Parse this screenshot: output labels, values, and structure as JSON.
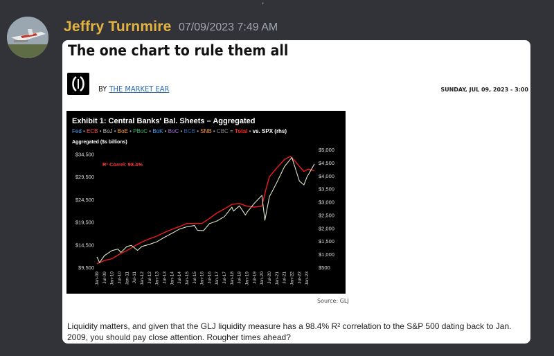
{
  "message": {
    "username": "Jeffry Turnmire",
    "timestamp": "07/09/2023 7:49 AM",
    "avatar": "airplane-avatar"
  },
  "embed": {
    "title": "The one chart to rule them all",
    "byline_prefix": "BY",
    "author": "THE MARKET EAR",
    "date": "SUNDAY, JUL 09, 2023 - 3:00",
    "source": "Source: GLJ",
    "text": "Liquidity matters, and given that the GLJ liquidity measure has a 98.4% R² correlation to the S&P 500 dating back to Jan. 2009, you should pay close attention. Rougher times ahead?"
  },
  "chart_data": {
    "type": "line",
    "title": "Exhibit 1: Central Banks' Bal. Sheets – Aggregated",
    "legend": [
      {
        "name": "Fed",
        "color": "#4da3ff"
      },
      {
        "name": "ECB",
        "color": "#ff4d4d"
      },
      {
        "name": "BoJ",
        "color": "#bbbbbb"
      },
      {
        "name": "BoE",
        "color": "#ffa033"
      },
      {
        "name": "PBoC",
        "color": "#3cb371"
      },
      {
        "name": "BoK",
        "color": "#3aa0ff"
      },
      {
        "name": "BoC",
        "color": "#a070d0"
      },
      {
        "name": "BCB",
        "color": "#2c5f9e"
      },
      {
        "name": "SNB",
        "color": "#ff9933"
      },
      {
        "name": "CBC",
        "color": "#888888"
      },
      {
        "name": "Total",
        "color": "#ff2020"
      },
      {
        "name": "vs. SPX (rhs)",
        "color": "#ffffff"
      }
    ],
    "legend_sep": "•",
    "legend_eq": "=",
    "ylabel": "Aggregated ($s billions)",
    "annotation": "R² Correl: 98.4%",
    "left_ticks": [
      "$34,500",
      "$29,500",
      "$24,500",
      "$19,500",
      "$14,500",
      "$9,500"
    ],
    "left_values": [
      34500,
      29500,
      24500,
      19500,
      14500,
      9500
    ],
    "ylim_left": [
      9500,
      35500
    ],
    "right_ticks": [
      "$5,000",
      "$4,500",
      "$4,000",
      "$3,500",
      "$3,000",
      "$2,500",
      "$2,000",
      "$1,500",
      "$1,000",
      "$500"
    ],
    "right_values": [
      5000,
      4500,
      4000,
      3500,
      3000,
      2500,
      2000,
      1500,
      1000,
      500
    ],
    "ylim_right": [
      500,
      5000
    ],
    "x_ticks": [
      "Jan-09",
      "Jul-09",
      "Jan-10",
      "Jul-10",
      "Jan-11",
      "Jul-11",
      "Jan-12",
      "Jul-12",
      "Jan-13",
      "Jul-13",
      "Jan-14",
      "Jul-14",
      "Jan-15",
      "Jul-15",
      "Jan-16",
      "Jul-16",
      "Jan-17",
      "Jul-17",
      "Jan-18",
      "Jul-18",
      "Jan-19",
      "Jul-19",
      "Jan-20",
      "Jul-20",
      "Jan-21",
      "Jul-21",
      "Jan-22",
      "Jul-22",
      "Jan-23"
    ],
    "series": [
      {
        "name": "Total",
        "color": "#ee1c1c",
        "axis": "left",
        "x": [
          2009.0,
          2009.5,
          2010.0,
          2010.5,
          2011.0,
          2011.5,
          2012.0,
          2012.5,
          2013.0,
          2013.5,
          2014.0,
          2014.5,
          2015.0,
          2015.5,
          2016.0,
          2016.5,
          2017.0,
          2017.5,
          2018.0,
          2018.5,
          2019.0,
          2019.5,
          2020.0,
          2020.25,
          2020.5,
          2021.0,
          2021.5,
          2021.9,
          2022.2,
          2022.5,
          2022.8,
          2023.1,
          2023.5
        ],
        "values": [
          10300,
          11000,
          11400,
          12400,
          13200,
          14200,
          15100,
          15800,
          16400,
          17200,
          17900,
          18500,
          19200,
          19200,
          19200,
          20300,
          21500,
          22400,
          23400,
          23600,
          23000,
          22800,
          23000,
          26500,
          29500,
          31500,
          33300,
          34000,
          33000,
          31800,
          30700,
          31200,
          30800
        ]
      },
      {
        "name": "vs. SPX (rhs)",
        "color": "#d8e8c8",
        "axis": "right",
        "x": [
          2009.0,
          2009.17,
          2009.5,
          2010.0,
          2010.4,
          2010.6,
          2011.0,
          2011.3,
          2011.7,
          2012.0,
          2012.5,
          2013.0,
          2013.5,
          2014.0,
          2014.5,
          2015.0,
          2015.5,
          2015.7,
          2016.1,
          2016.5,
          2017.0,
          2017.5,
          2018.0,
          2018.1,
          2018.5,
          2018.9,
          2019.0,
          2019.5,
          2020.0,
          2020.2,
          2020.5,
          2021.0,
          2021.5,
          2022.0,
          2022.5,
          2022.8,
          2023.0,
          2023.5
        ],
        "values": [
          900,
          680,
          950,
          1140,
          1200,
          1070,
          1300,
          1340,
          1150,
          1300,
          1380,
          1480,
          1650,
          1800,
          1960,
          2050,
          2100,
          1920,
          1900,
          2170,
          2270,
          2440,
          2800,
          2650,
          2850,
          2500,
          2600,
          2950,
          3250,
          2300,
          3200,
          3750,
          4350,
          4700,
          3800,
          3650,
          3950,
          4450
        ]
      }
    ]
  }
}
